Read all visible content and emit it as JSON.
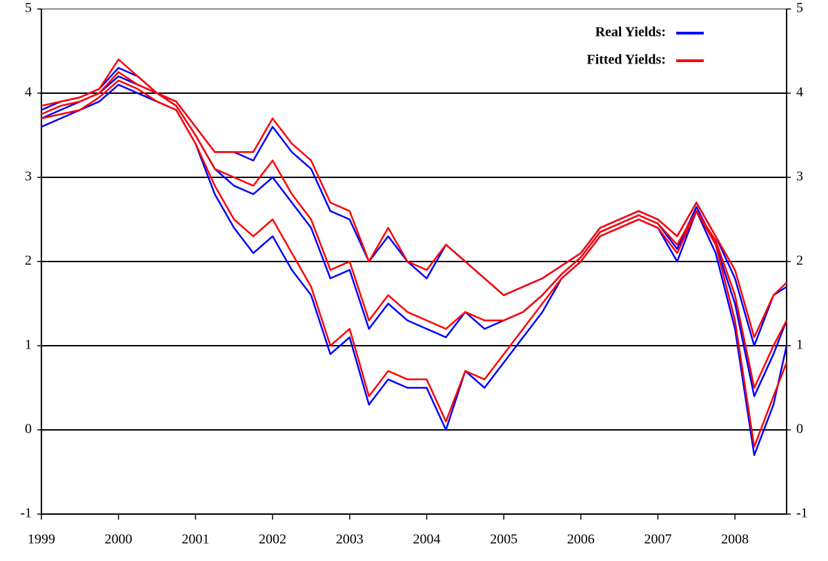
{
  "chart_data": {
    "type": "line",
    "x": [
      1999,
      1999.25,
      1999.5,
      1999.75,
      2000,
      2000.25,
      2000.5,
      2000.75,
      2001,
      2001.25,
      2001.5,
      2001.75,
      2002,
      2002.25,
      2002.5,
      2002.75,
      2003,
      2003.25,
      2003.5,
      2003.75,
      2004,
      2004.25,
      2004.5,
      2004.75,
      2005,
      2005.25,
      2005.5,
      2005.75,
      2006,
      2006.25,
      2006.5,
      2006.75,
      2007,
      2007.25,
      2007.5,
      2007.75,
      2008,
      2008.25,
      2008.5,
      2008.67
    ],
    "series": [
      {
        "name": "Real Yields:",
        "color": "#0000ff",
        "lines": [
          [
            3.6,
            3.7,
            3.8,
            3.9,
            4.1,
            4.0,
            3.9,
            3.8,
            3.4,
            2.8,
            2.4,
            2.1,
            2.3,
            1.9,
            1.6,
            0.9,
            1.1,
            0.3,
            0.6,
            0.5,
            0.5,
            0.0,
            0.7,
            0.5,
            0.8,
            1.1,
            1.4,
            1.8,
            2.0,
            2.3,
            2.4,
            2.5,
            2.4,
            2.0,
            2.6,
            2.1,
            1.2,
            -0.3,
            0.3,
            1.0
          ],
          [
            3.7,
            3.8,
            3.9,
            4.0,
            4.2,
            4.1,
            4.0,
            3.85,
            3.5,
            3.1,
            2.9,
            2.8,
            3.0,
            2.7,
            2.4,
            1.8,
            1.9,
            1.2,
            1.5,
            1.3,
            1.2,
            1.1,
            1.4,
            1.2,
            1.3,
            1.4,
            1.6,
            1.85,
            2.05,
            2.35,
            2.45,
            2.55,
            2.45,
            2.15,
            2.65,
            2.2,
            1.5,
            0.4,
            0.9,
            1.3
          ],
          [
            3.8,
            3.9,
            3.95,
            4.05,
            4.3,
            4.2,
            4.0,
            3.9,
            3.6,
            3.3,
            3.3,
            3.2,
            3.6,
            3.3,
            3.1,
            2.6,
            2.5,
            2.0,
            2.3,
            2.0,
            1.8,
            2.2,
            2.0,
            1.8,
            1.6,
            1.7,
            1.8,
            1.95,
            2.1,
            2.4,
            2.5,
            2.6,
            2.5,
            2.3,
            2.7,
            2.3,
            1.8,
            1.0,
            1.6,
            1.7
          ]
        ]
      },
      {
        "name": "Fitted Yields:",
        "color": "#ff0000",
        "lines": [
          [
            3.7,
            3.75,
            3.8,
            3.95,
            4.15,
            4.05,
            3.9,
            3.8,
            3.4,
            2.9,
            2.5,
            2.3,
            2.5,
            2.1,
            1.7,
            1.0,
            1.2,
            0.4,
            0.7,
            0.6,
            0.6,
            0.1,
            0.7,
            0.6,
            0.9,
            1.2,
            1.5,
            1.8,
            2.0,
            2.3,
            2.4,
            2.5,
            2.4,
            2.1,
            2.6,
            2.2,
            1.3,
            -0.2,
            0.4,
            0.8
          ],
          [
            3.75,
            3.85,
            3.9,
            4.0,
            4.25,
            4.1,
            4.0,
            3.85,
            3.5,
            3.1,
            3.0,
            2.9,
            3.2,
            2.8,
            2.5,
            1.9,
            2.0,
            1.3,
            1.6,
            1.4,
            1.3,
            1.2,
            1.4,
            1.3,
            1.3,
            1.4,
            1.6,
            1.85,
            2.05,
            2.35,
            2.45,
            2.55,
            2.45,
            2.2,
            2.6,
            2.25,
            1.6,
            0.5,
            1.0,
            1.3
          ],
          [
            3.85,
            3.9,
            3.95,
            4.05,
            4.4,
            4.2,
            4.0,
            3.9,
            3.6,
            3.3,
            3.3,
            3.3,
            3.7,
            3.4,
            3.2,
            2.7,
            2.6,
            2.0,
            2.4,
            2.0,
            1.9,
            2.2,
            2.0,
            1.8,
            1.6,
            1.7,
            1.8,
            1.95,
            2.1,
            2.4,
            2.5,
            2.6,
            2.5,
            2.3,
            2.7,
            2.3,
            1.9,
            1.1,
            1.6,
            1.75
          ]
        ]
      }
    ],
    "xlim": [
      1999,
      2008.67
    ],
    "xticks": [
      1999,
      2000,
      2001,
      2002,
      2003,
      2004,
      2005,
      2006,
      2007,
      2008
    ],
    "ylim": [
      -1,
      5
    ],
    "yticks": [
      -1,
      0,
      1,
      2,
      3,
      4,
      5
    ],
    "y2lim": [
      -1,
      5
    ],
    "y2ticks": [
      -1,
      0,
      1,
      2,
      3,
      4,
      5
    ],
    "grid": true,
    "legend": "upper right"
  }
}
